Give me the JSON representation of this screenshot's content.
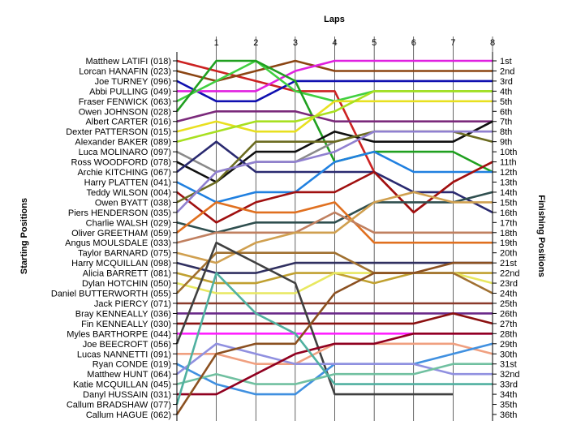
{
  "chart_data": {
    "type": "line",
    "title": "",
    "xlabel": "Laps",
    "ylabel_left": "Starting Positions",
    "ylabel_right": "Finishing Positions",
    "x": [
      0,
      1,
      2,
      3,
      4,
      5,
      6,
      7,
      8
    ],
    "x_tick_labels": [
      "1",
      "2",
      "3",
      "4",
      "5",
      "6",
      "7",
      "8"
    ],
    "y_range": [
      1,
      36
    ],
    "y_inverted": true,
    "grid": "vertical",
    "starting_grid": [
      "Matthew LATIFI (018)",
      "Lorcan HANAFIN (023)",
      "Joe TURNEY (096)",
      "Abbi PULLING (049)",
      "Fraser FENWICK (063)",
      "Owen JOHNSON (028)",
      "Albert CARTER (016)",
      "Dexter PATTERSON (015)",
      "Alexander BAKER (089)",
      "Luca MOLINARO (097)",
      "Ross WOODFORD (078)",
      "Archie KITCHING (067)",
      "Harry PLATTEN (041)",
      "Teddy WILSON (004)",
      "Owen BYATT (038)",
      "Piers HENDERSON (035)",
      "Charlie WALSH (029)",
      "Oliver GREETHAM (059)",
      "Angus MOULSDALE (033)",
      "Taylor BARNARD (075)",
      "Harry MCQUILLAN (098)",
      "Alicia BARRETT (081)",
      "Dylan HOTCHIN (050)",
      "Daniel BUTTERWORTH (055)",
      "Jack PIERCY (071)",
      "Bray KENNEALLY (036)",
      "Fin KENNEALLY (030)",
      "Myles BARTHORPE (044)",
      "Joe BEECROFT (056)",
      "Lucas NANNETTI (091)",
      "Ryan CONDE (019)",
      "Matthew HUNT (064)",
      "Katie MCQUILLAN (045)",
      "Danyl HUSSAIN (031)",
      "Callum BRADSHAW (077)",
      "Callum HAGUE (062)"
    ],
    "finishing_labels": [
      "1st",
      "2nd",
      "3rd",
      "4th",
      "5th",
      "6th",
      "7th",
      "8th",
      "9th",
      "10th",
      "11th",
      "12th",
      "13th",
      "14th",
      "15th",
      "16th",
      "17th",
      "18th",
      "19th",
      "20th",
      "21st",
      "22nd",
      "23rd",
      "24th",
      "25th",
      "26th",
      "27th",
      "28th",
      "29th",
      "30th",
      "31st",
      "32nd",
      "33rd",
      "34th",
      "35th",
      "36th"
    ],
    "series": [
      {
        "color": "#cc2222",
        "positions": [
          1,
          2,
          3,
          4,
          4,
          12,
          16,
          13,
          11
        ]
      },
      {
        "color": "#8b4513",
        "positions": [
          2,
          3,
          2,
          1,
          2,
          2,
          2,
          2,
          2
        ]
      },
      {
        "color": "#1010b0",
        "positions": [
          3,
          5,
          5,
          3,
          3,
          3,
          3,
          3,
          3
        ]
      },
      {
        "color": "#e020e0",
        "positions": [
          4,
          4,
          4,
          2,
          1,
          1,
          1,
          1,
          1
        ]
      },
      {
        "color": "#40d040",
        "positions": [
          5,
          3,
          1,
          4,
          5,
          4,
          4,
          4,
          4
        ]
      },
      {
        "color": "#20a020",
        "positions": [
          6,
          1,
          1,
          3,
          11,
          10,
          10,
          10,
          12
        ]
      },
      {
        "color": "#7b2a7b",
        "positions": [
          7,
          6,
          6,
          6,
          7,
          7,
          7,
          7,
          7
        ]
      },
      {
        "color": "#e8e020",
        "positions": [
          8,
          7,
          8,
          8,
          5,
          5,
          5,
          5,
          5
        ]
      },
      {
        "color": "#a8e020",
        "positions": [
          9,
          8,
          7,
          7,
          6,
          4,
          4,
          4,
          4
        ]
      },
      {
        "color": "#8a8a8a",
        "positions": [
          10,
          12,
          11,
          11,
          9,
          8,
          8,
          8,
          8
        ]
      },
      {
        "color": "#101010",
        "positions": [
          11,
          13,
          10,
          10,
          8,
          9,
          9,
          9,
          7
        ]
      },
      {
        "color": "#2a2a70",
        "positions": [
          12,
          9,
          12,
          12,
          12,
          12,
          14,
          14,
          16
        ]
      },
      {
        "color": "#2080e0",
        "positions": [
          13,
          15,
          14,
          14,
          11,
          10,
          12,
          12,
          12
        ]
      },
      {
        "color": "#a01010",
        "positions": [
          14,
          17,
          15,
          14,
          14,
          12,
          16,
          13,
          11
        ]
      },
      {
        "color": "#6b6b20",
        "positions": [
          15,
          13,
          9,
          9,
          9,
          8,
          8,
          8,
          9
        ]
      },
      {
        "color": "#9080d0",
        "positions": [
          16,
          12,
          11,
          11,
          10,
          8,
          8,
          8,
          8
        ]
      },
      {
        "color": "#2f4f4f",
        "positions": [
          17,
          18,
          17,
          17,
          17,
          15,
          15,
          15,
          14
        ]
      },
      {
        "color": "#e07020",
        "positions": [
          18,
          15,
          16,
          16,
          15,
          19,
          19,
          19,
          19
        ]
      },
      {
        "color": "#c08060",
        "positions": [
          19,
          18,
          18,
          18,
          16,
          18,
          18,
          18,
          18
        ]
      },
      {
        "color": "#d0a050",
        "positions": [
          20,
          21,
          19,
          18,
          18,
          15,
          14,
          15,
          15
        ]
      },
      {
        "color": "#303060",
        "positions": [
          21,
          22,
          22,
          21,
          21,
          21,
          21,
          21,
          21
        ]
      },
      {
        "color": "#c0a030",
        "positions": [
          22,
          23,
          23,
          22,
          22,
          23,
          22,
          22,
          22
        ]
      },
      {
        "color": "#e8e860",
        "positions": [
          23,
          24,
          24,
          24,
          22,
          22,
          22,
          22,
          23
        ]
      },
      {
        "color": "#a07030",
        "positions": [
          24,
          20,
          20,
          20,
          20,
          22,
          22,
          22,
          24
        ]
      },
      {
        "color": "#8b3a2a",
        "positions": [
          25,
          25,
          25,
          25,
          25,
          25,
          25,
          25,
          25
        ]
      },
      {
        "color": "#6a2a8a",
        "positions": [
          26,
          26,
          26,
          26,
          26,
          26,
          26,
          26,
          26
        ]
      },
      {
        "color": "#8b1010",
        "positions": [
          27,
          27,
          27,
          27,
          27,
          27,
          27,
          26,
          27
        ]
      },
      {
        "color": "#ff20ff",
        "positions": [
          28,
          28,
          28,
          28,
          28,
          28,
          28,
          28,
          28
        ]
      },
      {
        "color": "#404040",
        "positions": [
          29,
          19,
          21,
          23,
          34,
          34,
          34,
          34
        ]
      },
      {
        "color": "#f0a080",
        "positions": [
          30,
          30,
          31,
          31,
          29,
          29,
          29,
          29,
          30
        ]
      },
      {
        "color": "#4090e0",
        "positions": [
          31,
          33,
          34,
          34,
          31,
          31,
          31,
          30,
          29
        ]
      },
      {
        "color": "#9090e0",
        "positions": [
          32,
          29,
          30,
          31,
          31,
          31,
          31,
          32,
          32
        ]
      },
      {
        "color": "#70c0a0",
        "positions": [
          33,
          32,
          33,
          33,
          32,
          32,
          32,
          31,
          31
        ]
      },
      {
        "color": "#900020",
        "positions": [
          34,
          34,
          32,
          30,
          29,
          29,
          28,
          28,
          28
        ]
      },
      {
        "color": "#50b0a0",
        "positions": [
          35,
          22,
          26,
          28,
          33,
          33,
          33,
          33,
          33
        ]
      },
      {
        "color": "#8b5020",
        "positions": [
          36,
          30,
          29,
          29,
          24,
          22,
          22,
          21,
          21
        ]
      }
    ]
  }
}
